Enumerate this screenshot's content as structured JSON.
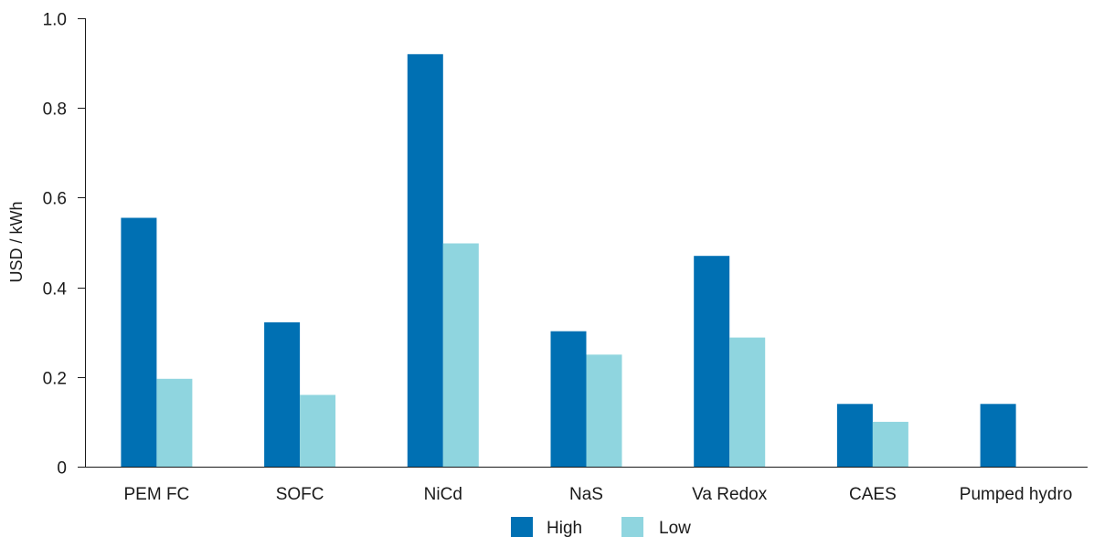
{
  "chart_data": {
    "type": "bar",
    "title": "",
    "xlabel": "",
    "ylabel": "USD / kWh",
    "categories": [
      "PEM FC",
      "SOFC",
      "NiCd",
      "NaS",
      "Va Redox",
      "CAES",
      "Pumped hydro"
    ],
    "series": [
      {
        "name": "High",
        "color": "#0070b3",
        "values": [
          0.555,
          0.322,
          0.92,
          0.302,
          0.47,
          0.14,
          0.14
        ]
      },
      {
        "name": "Low",
        "color": "#8fd5df",
        "values": [
          0.196,
          0.16,
          0.498,
          0.25,
          0.288,
          0.1,
          null
        ]
      }
    ],
    "ylim": [
      0,
      1.0
    ],
    "yticks": [
      0,
      0.2,
      0.4,
      0.6,
      0.8,
      1.0
    ],
    "ytick_labels": [
      "0",
      "0.2",
      "0.4",
      "0.6",
      "0.8",
      "1.0"
    ],
    "grid": false,
    "legend_position": "bottom-center"
  }
}
